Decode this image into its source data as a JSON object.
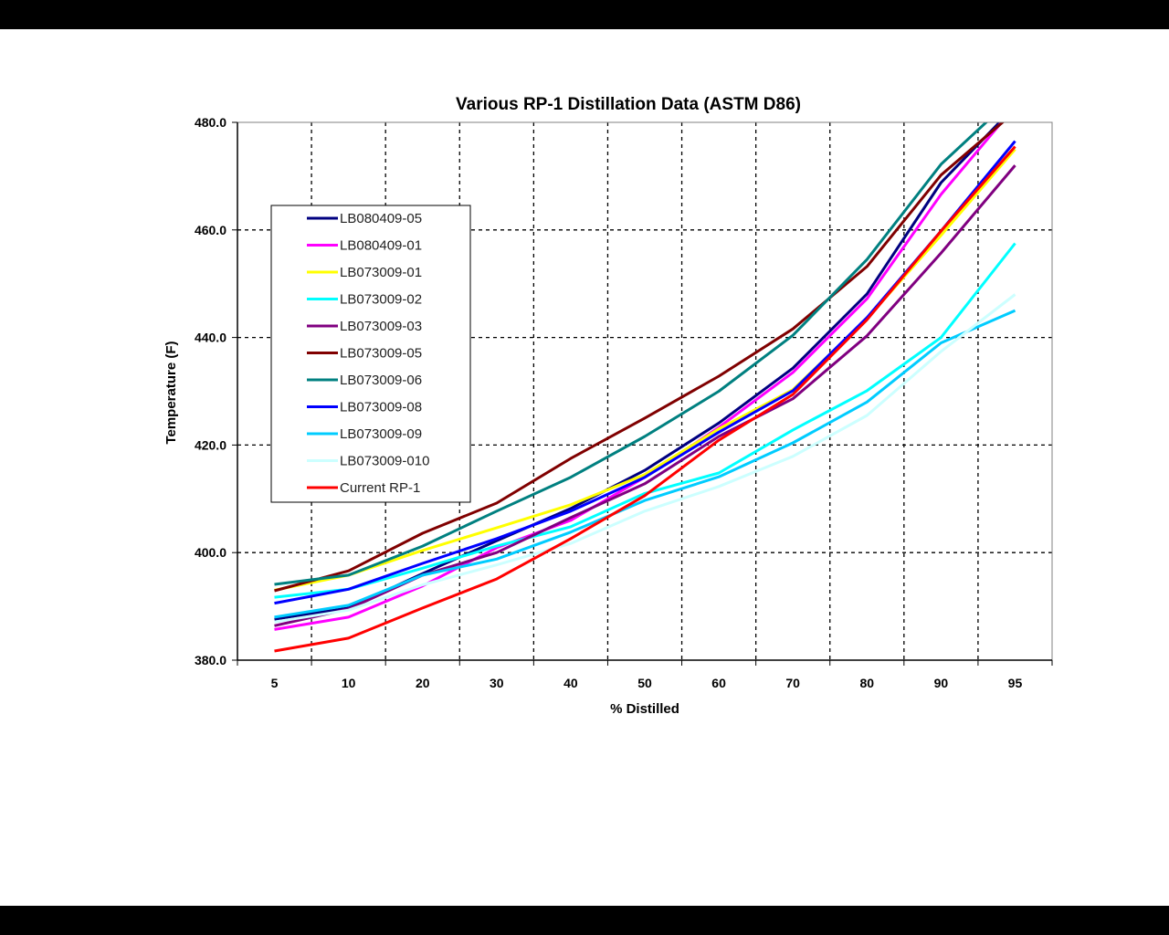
{
  "chart_data": {
    "type": "line",
    "title": "Various RP-1 Distillation Data (ASTM D86)",
    "xlabel": "% Distilled",
    "ylabel": "Temperature (F)",
    "categories": [
      "5",
      "10",
      "20",
      "30",
      "40",
      "50",
      "60",
      "70",
      "80",
      "90",
      "95"
    ],
    "ylim": [
      380,
      480
    ],
    "yticks": [
      "380.0",
      "400.0",
      "420.0",
      "440.0",
      "460.0",
      "480.0"
    ],
    "grid": true,
    "legend_position": "left inside plot",
    "series": [
      {
        "name": "LB080409-05",
        "color": "#000080",
        "values": [
          387.6,
          389.7,
          396.1,
          402.2,
          408.2,
          415.3,
          424.1,
          434.3,
          448.1,
          468.8,
          483
        ]
      },
      {
        "name": "LB080409-01",
        "color": "#FF00FF",
        "values": [
          385.7,
          388.0,
          393.8,
          400.9,
          406.0,
          414.0,
          423.3,
          433.5,
          447.2,
          466.6,
          483
        ]
      },
      {
        "name": "LB073009-01",
        "color": "#FFFF00",
        "values": [
          393.0,
          395.8,
          400.4,
          404.6,
          408.9,
          414.5,
          423.0,
          430.3,
          443.5,
          459.0,
          475.0
        ]
      },
      {
        "name": "LB073009-02",
        "color": "#00FFFF",
        "values": [
          391.7,
          393.2,
          397.1,
          401.2,
          404.8,
          411.0,
          414.8,
          422.8,
          430.1,
          440.0,
          457.5
        ]
      },
      {
        "name": "LB073009-03",
        "color": "#800080",
        "values": [
          386.4,
          389.5,
          395.8,
          400.0,
          406.5,
          412.8,
          421.6,
          428.6,
          440.3,
          455.7,
          472.0
        ]
      },
      {
        "name": "LB073009-05",
        "color": "#800000",
        "values": [
          392.9,
          396.6,
          403.6,
          409.2,
          417.5,
          425.0,
          432.8,
          441.6,
          453.2,
          470.2,
          482
        ]
      },
      {
        "name": "LB073009-06",
        "color": "#008080",
        "values": [
          394.1,
          395.8,
          401.2,
          407.7,
          414.0,
          421.6,
          430.0,
          440.4,
          454.5,
          472.2,
          485
        ]
      },
      {
        "name": "LB073009-08",
        "color": "#0000FF",
        "values": [
          390.6,
          393.2,
          398.0,
          402.6,
          407.7,
          414.0,
          422.4,
          430.1,
          443.7,
          459.8,
          476.5
        ]
      },
      {
        "name": "LB073009-09",
        "color": "#00CCFF",
        "values": [
          388.0,
          390.2,
          395.8,
          398.8,
          403.8,
          409.7,
          414.1,
          420.4,
          428.0,
          439.0,
          445.0
        ]
      },
      {
        "name": "LB073009-010",
        "color": "#CCFFFF",
        "values": [
          387.1,
          389.3,
          394.0,
          397.7,
          401.7,
          407.7,
          412.3,
          417.9,
          425.5,
          437.4,
          448.0
        ]
      },
      {
        "name": "Current RP-1",
        "color": "#FF0000",
        "values": [
          381.7,
          384.1,
          389.7,
          395.1,
          402.6,
          410.6,
          420.9,
          429.4,
          443.3,
          459.8,
          475.5
        ]
      }
    ]
  }
}
